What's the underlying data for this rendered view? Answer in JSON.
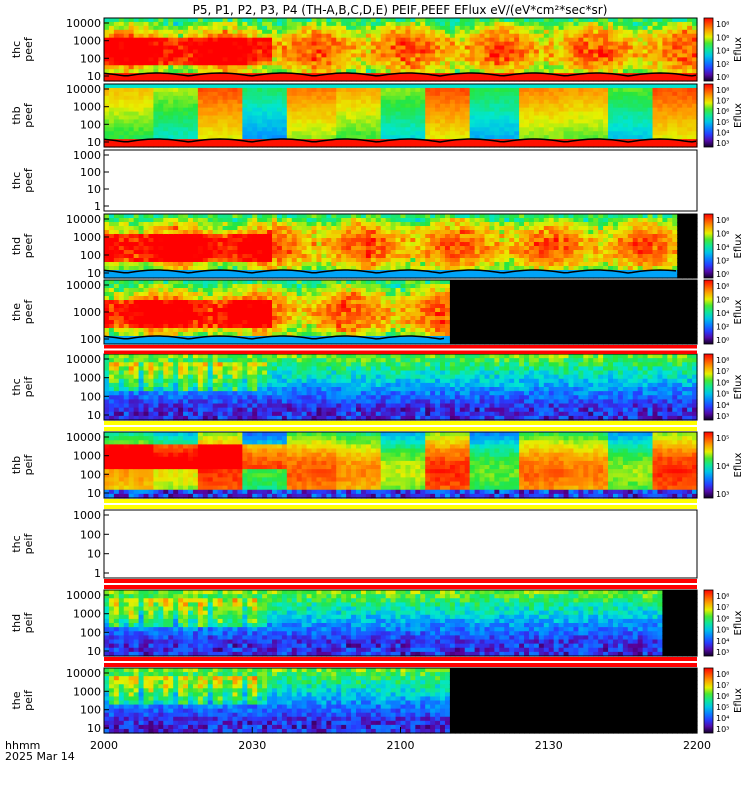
{
  "title": "P5, P1, P2, P3, P4 (TH-A,B,C,D,E) PEIF,PEEF EFlux eV/(eV*cm²*sec*sr)",
  "footer": {
    "axis_label": "hhmm",
    "date": "2025 Mar 14"
  },
  "chart_data": {
    "type": "heatmap",
    "title": "P5, P1, P2, P3, P4 (TH-A,B,C,D,E) PEIF,PEEF EFlux eV/(eV*cm²*sec*sr)",
    "x_axis": {
      "label": "hhmm",
      "date": "2025 Mar 14",
      "ticks": [
        "2000",
        "2030",
        "2100",
        "2130",
        "2200"
      ]
    },
    "colorbar_label": "Eflux",
    "panels": [
      {
        "name": "thc peef",
        "label_top": "thc",
        "label_bottom": "peef",
        "data": true,
        "scheme": "electron_hot",
        "yticks": [
          "10000",
          "1000",
          "100",
          "10"
        ],
        "cbar_ticks": [
          "10⁸",
          "10⁶",
          "10⁴",
          "10²",
          "10⁰"
        ],
        "coverage_end": 1.0
      },
      {
        "name": "thb peef",
        "label_top": "thb",
        "label_bottom": "peef",
        "data": true,
        "scheme": "electron_blocky",
        "yticks": [
          "10000",
          "1000",
          "100",
          "10"
        ],
        "cbar_ticks": [
          "10⁸",
          "10⁷",
          "10⁶",
          "10⁵",
          "10⁴",
          "10³"
        ],
        "coverage_end": 1.0
      },
      {
        "name": "thc peef (empty)",
        "label_top": "thc",
        "label_bottom": "peef",
        "data": false,
        "yticks": [
          "1000",
          "100",
          "10",
          "1"
        ]
      },
      {
        "name": "thd peef",
        "label_top": "thd",
        "label_bottom": "peef",
        "data": true,
        "scheme": "electron_hot",
        "yticks": [
          "10000",
          "1000",
          "100",
          "10"
        ],
        "cbar_ticks": [
          "10⁸",
          "10⁶",
          "10⁴",
          "10²",
          "10⁰"
        ],
        "coverage_end": 0.965
      },
      {
        "name": "the peef",
        "label_top": "the",
        "label_bottom": "peef",
        "data": true,
        "scheme": "electron_hot",
        "yticks": [
          "10000",
          "1000",
          "100"
        ],
        "cbar_ticks": [
          "10⁸",
          "10⁶",
          "10⁴",
          "10²",
          "10⁰"
        ],
        "coverage_end": 0.58
      },
      {
        "name": "thc peif",
        "label_top": "thc",
        "label_bottom": "peif",
        "data": true,
        "scheme": "ion",
        "yticks": [
          "10000",
          "1000",
          "100",
          "10"
        ],
        "cbar_ticks": [
          "10⁸",
          "10⁷",
          "10⁶",
          "10⁵",
          "10⁴",
          "10³"
        ],
        "coverage_end": 1.0
      },
      {
        "name": "thb peif",
        "label_top": "thb",
        "label_bottom": "peif",
        "data": true,
        "scheme": "ion_blocky",
        "yticks": [
          "10000",
          "1000",
          "100",
          "10"
        ],
        "cbar_ticks": [
          "10⁵",
          "10⁴",
          "10³"
        ],
        "coverage_end": 1.0
      },
      {
        "name": "thc peif (empty)",
        "label_top": "thc",
        "label_bottom": "peif",
        "data": false,
        "yticks": [
          "1000",
          "100",
          "10",
          "1"
        ]
      },
      {
        "name": "thd peif",
        "label_top": "thd",
        "label_bottom": "peif",
        "data": true,
        "scheme": "ion",
        "yticks": [
          "10000",
          "1000",
          "100",
          "10"
        ],
        "cbar_ticks": [
          "10⁸",
          "10⁷",
          "10⁶",
          "10⁵",
          "10⁴",
          "10³"
        ],
        "coverage_end": 0.94
      },
      {
        "name": "the peif",
        "label_top": "the",
        "label_bottom": "peif",
        "data": true,
        "scheme": "ion",
        "yticks": [
          "10000",
          "1000",
          "100",
          "10"
        ],
        "cbar_ticks": [
          "10⁸",
          "10⁷",
          "10⁶",
          "10⁵",
          "10⁴",
          "10³"
        ],
        "coverage_end": 0.58
      }
    ]
  }
}
